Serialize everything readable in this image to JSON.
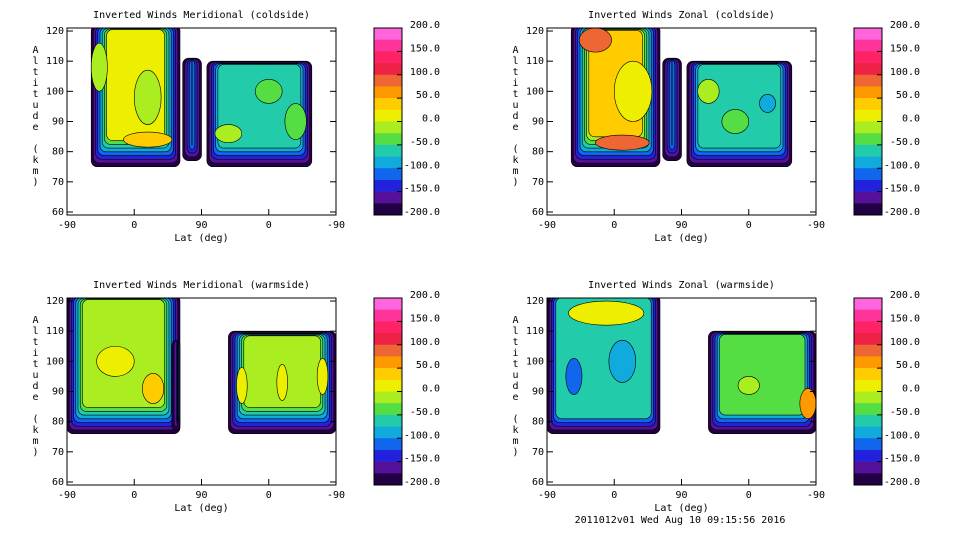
{
  "chart_data": [
    {
      "type": "contour",
      "title": "Inverted Winds Meridional (coldside)",
      "xlabel": "Lat (deg)",
      "ylabel": "Altitude (km)",
      "categories": [
        "-90",
        "0",
        "90",
        "0",
        "-90"
      ],
      "ylim": [
        59,
        121
      ],
      "yticks": [
        60,
        70,
        80,
        90,
        100,
        110,
        120
      ]
    },
    {
      "type": "contour",
      "title": "Inverted Winds Zonal (coldside)",
      "xlabel": "Lat (deg)",
      "ylabel": "Altitude (km)",
      "categories": [
        "-90",
        "0",
        "90",
        "0",
        "-90"
      ],
      "ylim": [
        59,
        121
      ],
      "yticks": [
        60,
        70,
        80,
        90,
        100,
        110,
        120
      ]
    },
    {
      "type": "contour",
      "title": "Inverted Winds Meridional (warmside)",
      "xlabel": "Lat (deg)",
      "ylabel": "Altitude (km)",
      "categories": [
        "-90",
        "0",
        "90",
        "0",
        "-90"
      ],
      "ylim": [
        59,
        121
      ],
      "yticks": [
        60,
        70,
        80,
        90,
        100,
        110,
        120
      ]
    },
    {
      "type": "contour",
      "title": "Inverted Winds Zonal (warmside)",
      "xlabel": "Lat (deg)",
      "ylabel": "Altitude (km)",
      "categories": [
        "-90",
        "0",
        "90",
        "0",
        "-90"
      ],
      "ylim": [
        59,
        121
      ],
      "yticks": [
        60,
        70,
        80,
        90,
        100,
        110,
        120
      ]
    }
  ],
  "colorbar": {
    "ticks": [
      {
        "value": 200,
        "label": "200.0"
      },
      {
        "value": 150,
        "label": "150.0"
      },
      {
        "value": 100,
        "label": "100.0"
      },
      {
        "value": 50,
        "label": "50.0"
      },
      {
        "value": 0,
        "label": "0.0"
      },
      {
        "value": -50,
        "label": "-50.0"
      },
      {
        "value": -100,
        "label": "-100.0"
      },
      {
        "value": -150,
        "label": "-150.0"
      },
      {
        "value": -200,
        "label": "-200.0"
      }
    ],
    "colors": [
      "#ff66dd",
      "#ff3399",
      "#ff2266",
      "#ee2244",
      "#ee6633",
      "#ff9900",
      "#ffcc00",
      "#eeee00",
      "#aaee22",
      "#55dd44",
      "#22ccaa",
      "#11aadd",
      "#1166ee",
      "#2222dd",
      "#551199",
      "#220044"
    ]
  },
  "footer": "2011012v01 Wed Aug 10 09:15:56 2016"
}
